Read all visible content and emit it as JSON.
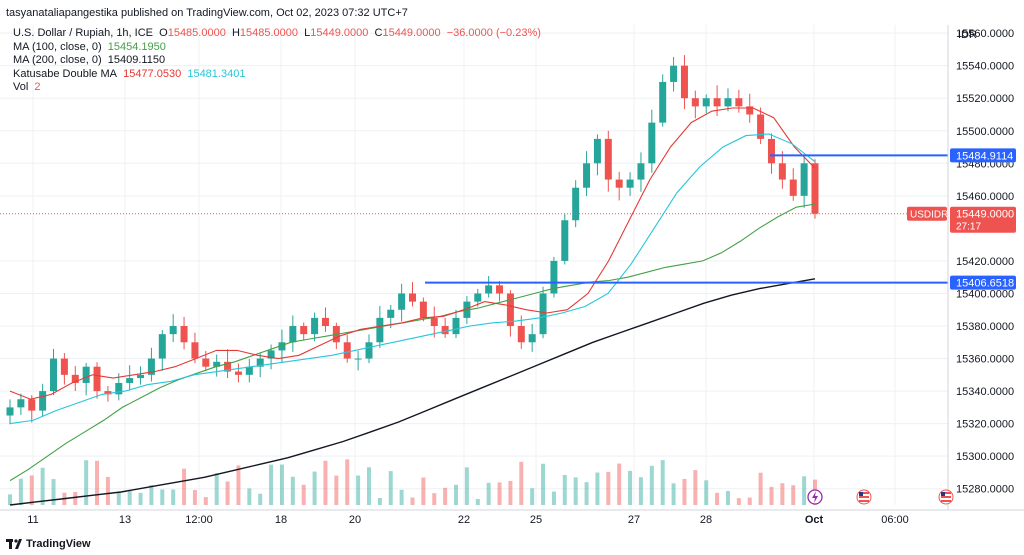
{
  "header": {
    "publisher_line": "tasyanataliapangestika published on TradingView.com, Oct 02, 2023 07:32 UTC+7"
  },
  "legend": {
    "symbol": "U.S. Dollar / Rupiah, 1h, ICE",
    "ohlc": {
      "O": "15485.0000",
      "H": "15485.0000",
      "L": "15449.0000",
      "C": "15449.0000",
      "change": "−36.0000 (−0.23%)"
    },
    "ma100": {
      "label": "MA (100, close, 0)",
      "value": "15454.1950"
    },
    "ma200": {
      "label": "MA (200, close, 0)",
      "value": "15409.1150"
    },
    "katusabe": {
      "label": "Katusabe Double MA",
      "v1": "15477.0530",
      "v2": "15481.3401"
    },
    "vol": {
      "label": "Vol",
      "value": "2"
    }
  },
  "footer": {
    "brand": "TradingView"
  },
  "colors": {
    "up": "#26a69a",
    "down": "#ef5350",
    "hline": "#2962ff",
    "ma100": "#43a047",
    "ma200": "#131722",
    "fast": "#e53935",
    "slow": "#26c6da",
    "bg": "#ffffff",
    "grid": "#eef0f3"
  },
  "chart_data": {
    "type": "line",
    "currency": "IDR",
    "y_ticks": [
      "15560.0000",
      "15540.0000",
      "15520.0000",
      "15500.0000",
      "15480.0000",
      "15460.0000",
      "15420.0000",
      "15400.0000",
      "15380.0000",
      "15360.0000",
      "15340.0000",
      "15320.0000",
      "15300.0000",
      "15280.0000"
    ],
    "x_ticks": [
      "11",
      "13",
      "12:00",
      "18",
      "20",
      "22",
      "25",
      "27",
      "28",
      "Oct",
      "06:00"
    ],
    "ylim": [
      15270,
      15565
    ],
    "price_labels": {
      "resistance": {
        "value": 15484.9114,
        "text": "15484.9114"
      },
      "support": {
        "value": 15406.6518,
        "text": "15406.6518"
      },
      "last": {
        "value": 15449.0,
        "text": "15449.0000",
        "symbol": "USDIDR",
        "countdown": "27:17"
      }
    },
    "candles_close": [
      15330,
      15335,
      15328,
      15340,
      15360,
      15350,
      15345,
      15355,
      15340,
      15338,
      15345,
      15348,
      15350,
      15360,
      15375,
      15380,
      15370,
      15360,
      15355,
      15358,
      15352,
      15350,
      15355,
      15360,
      15365,
      15370,
      15380,
      15375,
      15385,
      15380,
      15370,
      15360,
      15360,
      15370,
      15385,
      15390,
      15400,
      15395,
      15385,
      15380,
      15375,
      15385,
      15395,
      15400,
      15405,
      15400,
      15380,
      15370,
      15375,
      15400,
      15420,
      15445,
      15465,
      15480,
      15495,
      15470,
      15465,
      15470,
      15480,
      15505,
      15530,
      15540,
      15520,
      15515,
      15520,
      15515,
      15520,
      15515,
      15510,
      15495,
      15480,
      15470,
      15460,
      15480,
      15449
    ],
    "series": [
      {
        "name": "MA (100, close, 0)",
        "values": [
          15285,
          15292,
          15300,
          15308,
          15315,
          15322,
          15330,
          15336,
          15342,
          15347,
          15351,
          15355,
          15358,
          15362,
          15366,
          15370,
          15372,
          15374,
          15376,
          15378,
          15380,
          15382,
          15384,
          15386,
          15389,
          15391,
          15394,
          15397,
          15400,
          15403,
          15405,
          15407,
          15408,
          15410,
          15413,
          15416,
          15418,
          15420,
          15425,
          15432,
          15440,
          15447,
          15453,
          15455
        ]
      },
      {
        "name": "MA (200, close, 0)",
        "values": [
          15270,
          15272,
          15274,
          15276,
          15278,
          15281,
          15284,
          15287,
          15291,
          15295,
          15299,
          15304,
          15309,
          15315,
          15321,
          15328,
          15335,
          15342,
          15349,
          15356,
          15363,
          15370,
          15376,
          15382,
          15388,
          15394,
          15399,
          15403,
          15406,
          15409
        ]
      },
      {
        "name": "Katusabe Double MA",
        "values": [
          15340,
          15335,
          15338,
          15345,
          15350,
          15348,
          15350,
          15352,
          15355,
          15360,
          15365,
          15365,
          15362,
          15360,
          15362,
          15368,
          15374,
          15378,
          15380,
          15382,
          15385,
          15386,
          15390,
          15395,
          15393,
          15390,
          15388,
          15390,
          15400,
          15420,
          15445,
          15470,
          15490,
          15505,
          15512,
          15514,
          15514,
          15508,
          15490,
          15477
        ]
      },
      {
        "name": "Katusabe Double MA",
        "values": [
          15320,
          15322,
          15328,
          15333,
          15338,
          15340,
          15344,
          15346,
          15350,
          15352,
          15354,
          15356,
          15358,
          15360,
          15362,
          15365,
          15368,
          15371,
          15374,
          15377,
          15380,
          15382,
          15383,
          15385,
          15388,
          15392,
          15400,
          15418,
          15440,
          15462,
          15478,
          15490,
          15497,
          15498,
          15492,
          15481
        ]
      }
    ]
  }
}
